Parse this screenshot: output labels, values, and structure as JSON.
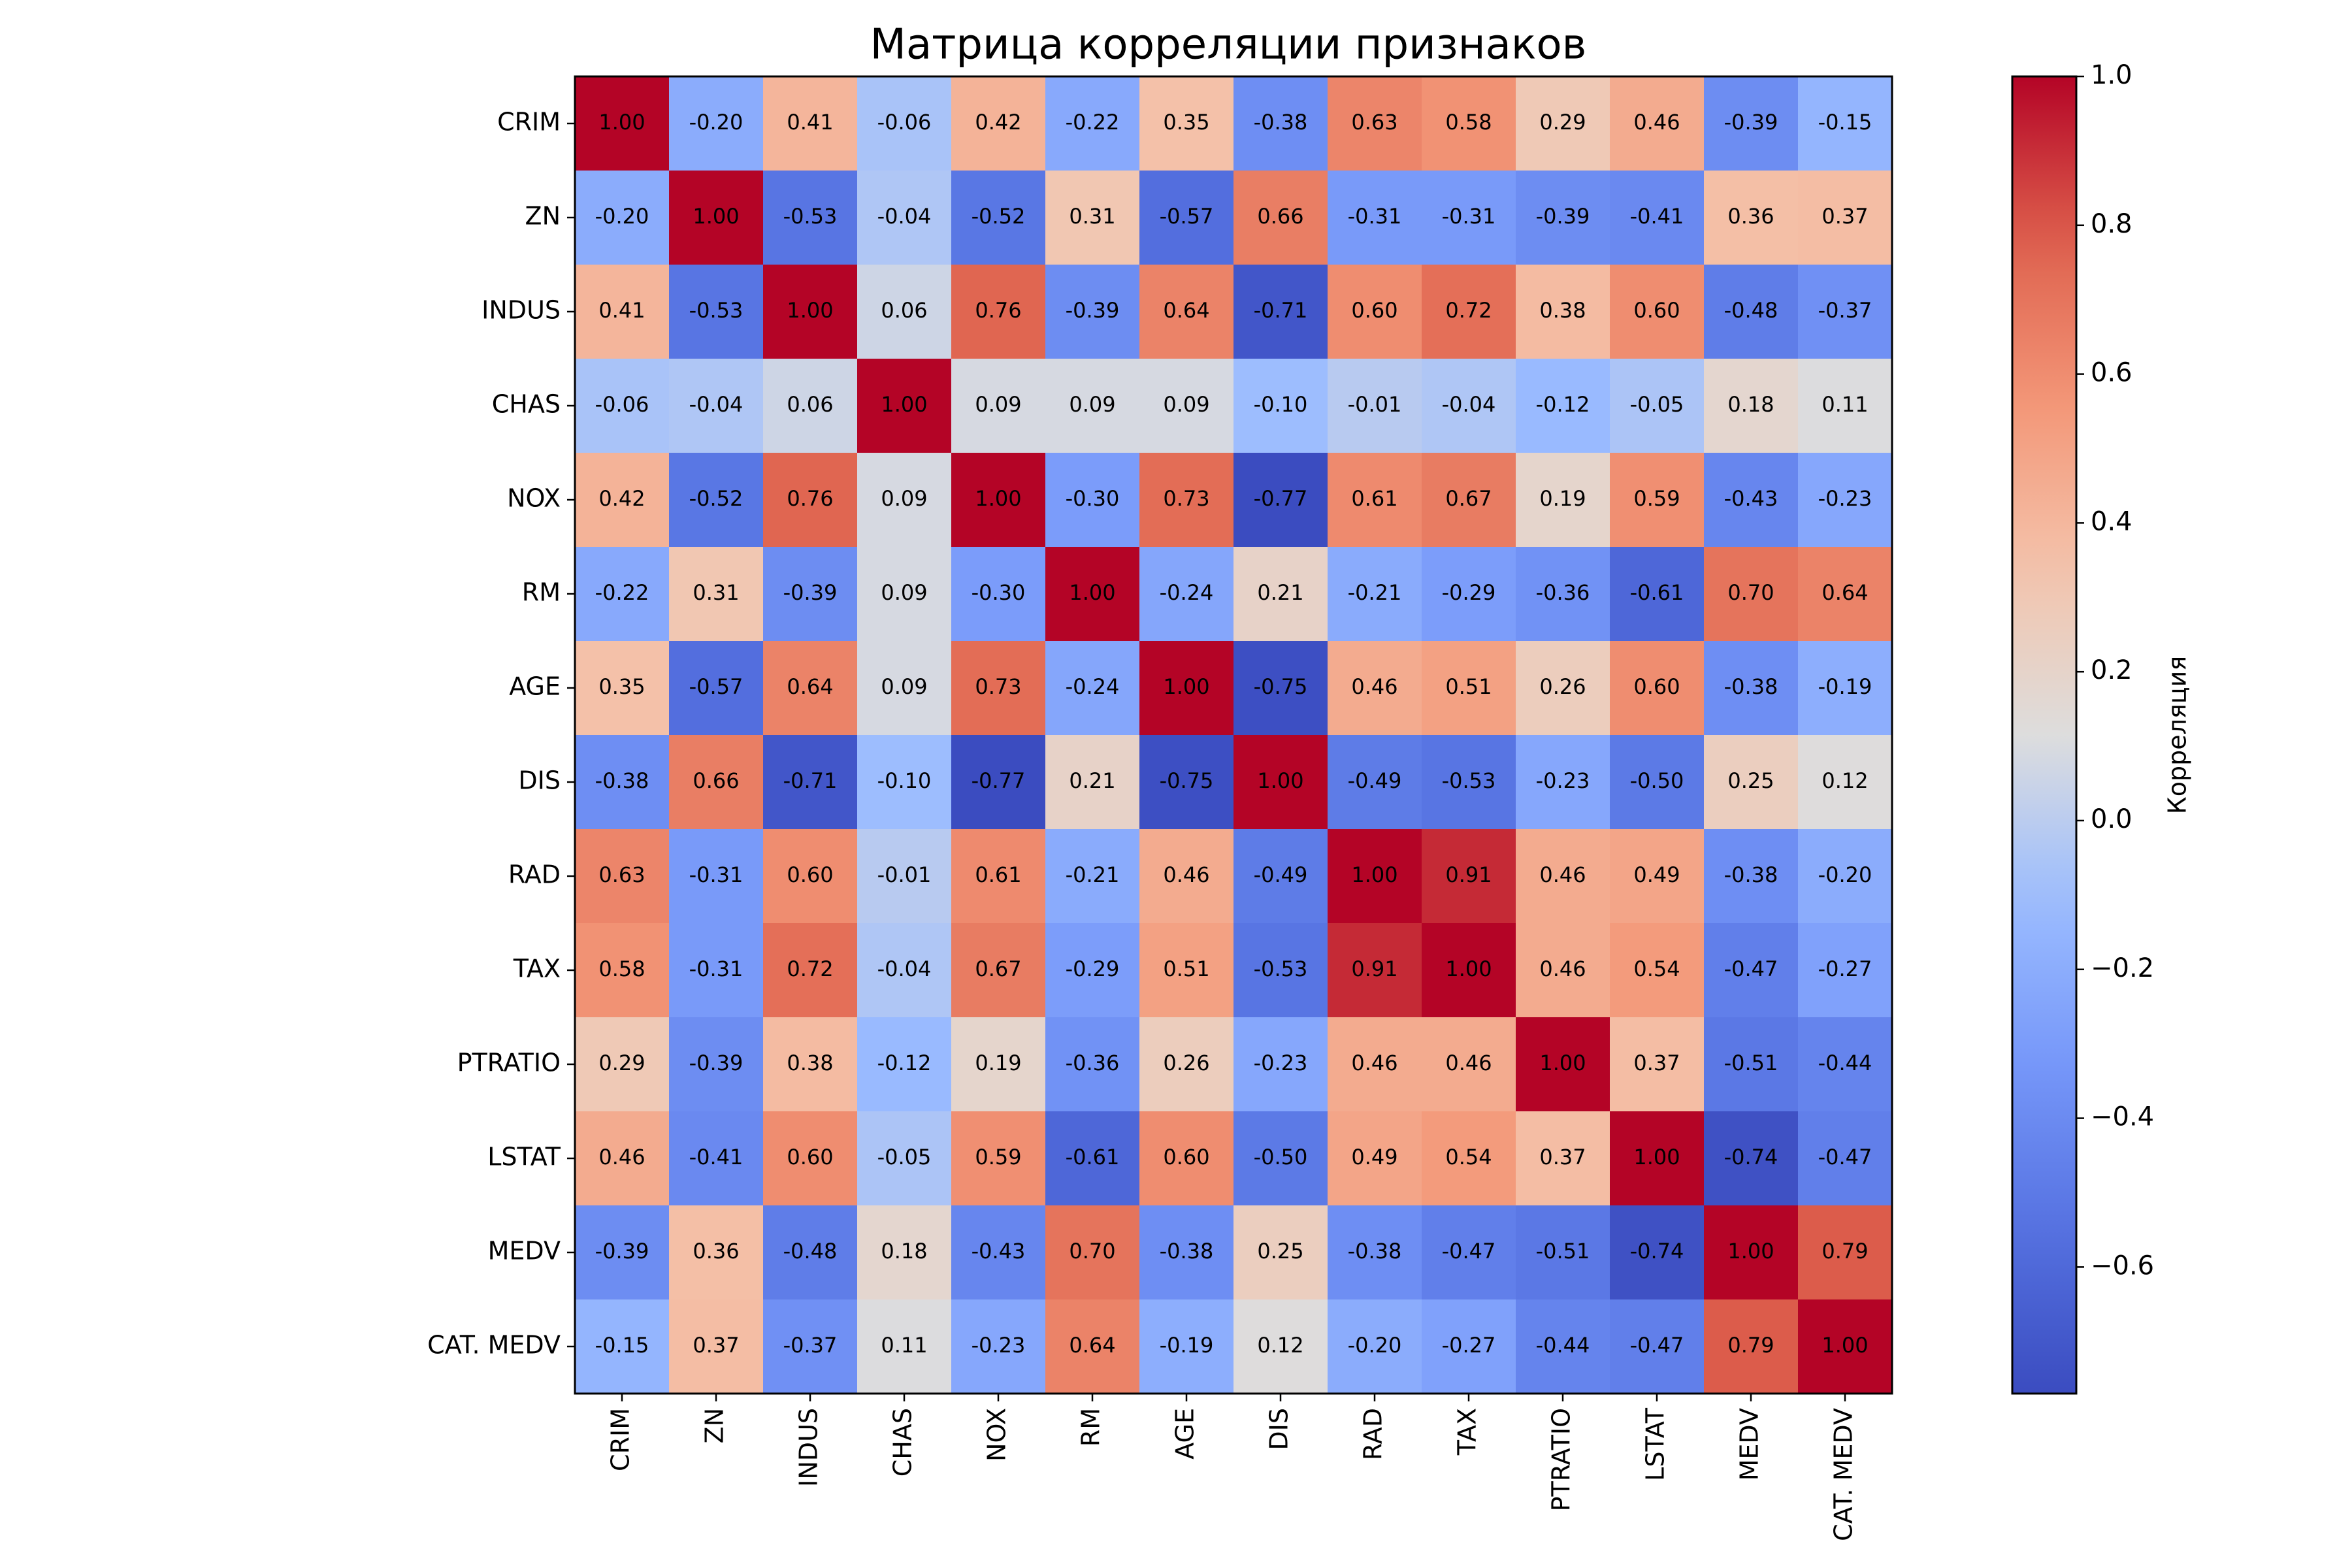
{
  "chart_data": {
    "type": "heatmap",
    "title": "Матрица корреляции признаков",
    "colormap": "coolwarm",
    "colorbar": {
      "label": "Корреляция",
      "vmin": -0.77,
      "vmax": 1.0,
      "ticks": [
        1.0,
        0.8,
        0.6,
        0.4,
        0.2,
        0.0,
        -0.2,
        -0.4,
        -0.6
      ],
      "tick_labels": [
        "1.0",
        "0.8",
        "0.6",
        "0.4",
        "0.2",
        "0.0",
        "−0.2",
        "−0.4",
        "−0.6"
      ]
    },
    "labels": [
      "CRIM",
      "ZN",
      "INDUS",
      "CHAS",
      "NOX",
      "RM",
      "AGE",
      "DIS",
      "RAD",
      "TAX",
      "PTRATIO",
      "LSTAT",
      "MEDV",
      "CAT. MEDV"
    ],
    "values": [
      [
        1.0,
        -0.2,
        0.41,
        -0.06,
        0.42,
        -0.22,
        0.35,
        -0.38,
        0.63,
        0.58,
        0.29,
        0.46,
        -0.39,
        -0.15
      ],
      [
        -0.2,
        1.0,
        -0.53,
        -0.04,
        -0.52,
        0.31,
        -0.57,
        0.66,
        -0.31,
        -0.31,
        -0.39,
        -0.41,
        0.36,
        0.37
      ],
      [
        0.41,
        -0.53,
        1.0,
        0.06,
        0.76,
        -0.39,
        0.64,
        -0.71,
        0.6,
        0.72,
        0.38,
        0.6,
        -0.48,
        -0.37
      ],
      [
        -0.06,
        -0.04,
        0.06,
        1.0,
        0.09,
        0.09,
        0.09,
        -0.1,
        -0.01,
        -0.04,
        -0.12,
        -0.05,
        0.18,
        0.11
      ],
      [
        0.42,
        -0.52,
        0.76,
        0.09,
        1.0,
        -0.3,
        0.73,
        -0.77,
        0.61,
        0.67,
        0.19,
        0.59,
        -0.43,
        -0.23
      ],
      [
        -0.22,
        0.31,
        -0.39,
        0.09,
        -0.3,
        1.0,
        -0.24,
        0.21,
        -0.21,
        -0.29,
        -0.36,
        -0.61,
        0.7,
        0.64
      ],
      [
        0.35,
        -0.57,
        0.64,
        0.09,
        0.73,
        -0.24,
        1.0,
        -0.75,
        0.46,
        0.51,
        0.26,
        0.6,
        -0.38,
        -0.19
      ],
      [
        -0.38,
        0.66,
        -0.71,
        -0.1,
        -0.77,
        0.21,
        -0.75,
        1.0,
        -0.49,
        -0.53,
        -0.23,
        -0.5,
        0.25,
        0.12
      ],
      [
        0.63,
        -0.31,
        0.6,
        -0.01,
        0.61,
        -0.21,
        0.46,
        -0.49,
        1.0,
        0.91,
        0.46,
        0.49,
        -0.38,
        -0.2
      ],
      [
        0.58,
        -0.31,
        0.72,
        -0.04,
        0.67,
        -0.29,
        0.51,
        -0.53,
        0.91,
        1.0,
        0.46,
        0.54,
        -0.47,
        -0.27
      ],
      [
        0.29,
        -0.39,
        0.38,
        -0.12,
        0.19,
        -0.36,
        0.26,
        -0.23,
        0.46,
        0.46,
        1.0,
        0.37,
        -0.51,
        -0.44
      ],
      [
        0.46,
        -0.41,
        0.6,
        -0.05,
        0.59,
        -0.61,
        0.6,
        -0.5,
        0.49,
        0.54,
        0.37,
        1.0,
        -0.74,
        -0.47
      ],
      [
        -0.39,
        0.36,
        -0.48,
        0.18,
        -0.43,
        0.7,
        -0.38,
        0.25,
        -0.38,
        -0.47,
        -0.51,
        -0.74,
        1.0,
        0.79
      ],
      [
        -0.15,
        0.37,
        -0.37,
        0.11,
        -0.23,
        0.64,
        -0.19,
        0.12,
        -0.2,
        -0.27,
        -0.44,
        -0.47,
        0.79,
        1.0
      ]
    ]
  }
}
